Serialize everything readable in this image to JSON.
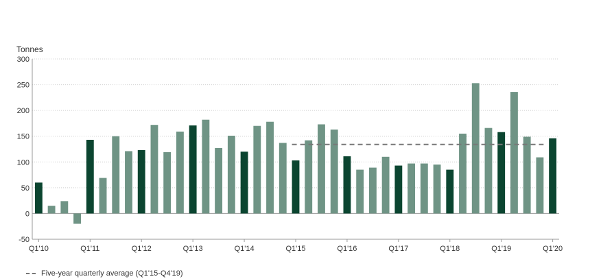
{
  "chart_data": {
    "type": "bar",
    "ylabel": "Tonnes",
    "ylim": [
      -50,
      300
    ],
    "yticks": [
      -50,
      0,
      50,
      100,
      150,
      200,
      250,
      300
    ],
    "grid": true,
    "categories": [
      "Q1'10",
      "Q2'10",
      "Q3'10",
      "Q4'10",
      "Q1'11",
      "Q2'11",
      "Q3'11",
      "Q4'11",
      "Q1'12",
      "Q2'12",
      "Q3'12",
      "Q4'12",
      "Q1'13",
      "Q2'13",
      "Q3'13",
      "Q4'13",
      "Q1'14",
      "Q2'14",
      "Q3'14",
      "Q4'14",
      "Q1'15",
      "Q2'15",
      "Q3'15",
      "Q4'15",
      "Q1'16",
      "Q2'16",
      "Q3'16",
      "Q4'16",
      "Q1'17",
      "Q2'17",
      "Q3'17",
      "Q4'17",
      "Q1'18",
      "Q2'18",
      "Q3'18",
      "Q4'18",
      "Q1'19",
      "Q2'19",
      "Q3'19",
      "Q4'19",
      "Q1'20"
    ],
    "x_tick_labels": [
      "Q1'10",
      "Q1'11",
      "Q1'12",
      "Q1'13",
      "Q1'14",
      "Q1'15",
      "Q1'16",
      "Q1'17",
      "Q1'18",
      "Q1'19",
      "Q1'20"
    ],
    "values": [
      60,
      15,
      24,
      -20,
      143,
      69,
      150,
      121,
      123,
      172,
      119,
      159,
      171,
      182,
      127,
      151,
      120,
      170,
      178,
      137,
      103,
      142,
      173,
      163,
      111,
      85,
      89,
      110,
      93,
      97,
      97,
      95,
      85,
      155,
      253,
      166,
      158,
      236,
      149,
      109,
      146
    ],
    "colors": {
      "q1": "#0b4530",
      "other": "#6f9485",
      "average_line": "#777777"
    },
    "average": {
      "label": "Five-year quarterly average (Q1'15-Q4'19)",
      "value": 134,
      "from": "Q1'15",
      "to": "Q4'19"
    },
    "legend_position": "bottom-left"
  }
}
